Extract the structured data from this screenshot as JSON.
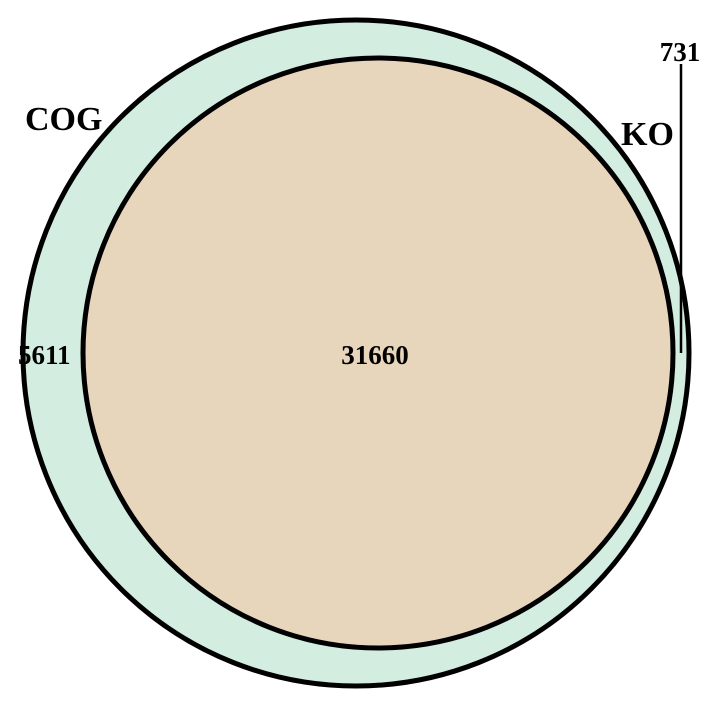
{
  "diagram": {
    "type": "venn",
    "sets": [
      {
        "name": "COG",
        "label": "COG",
        "color": "#d3ede1"
      },
      {
        "name": "KO",
        "label": "KO",
        "color": "#fbdfcf"
      }
    ],
    "overlap_color": "#e7d5bc",
    "outline_color": "#000000",
    "regions": {
      "cog_only": "5611",
      "intersection": "31660",
      "ko_only": "731"
    }
  }
}
